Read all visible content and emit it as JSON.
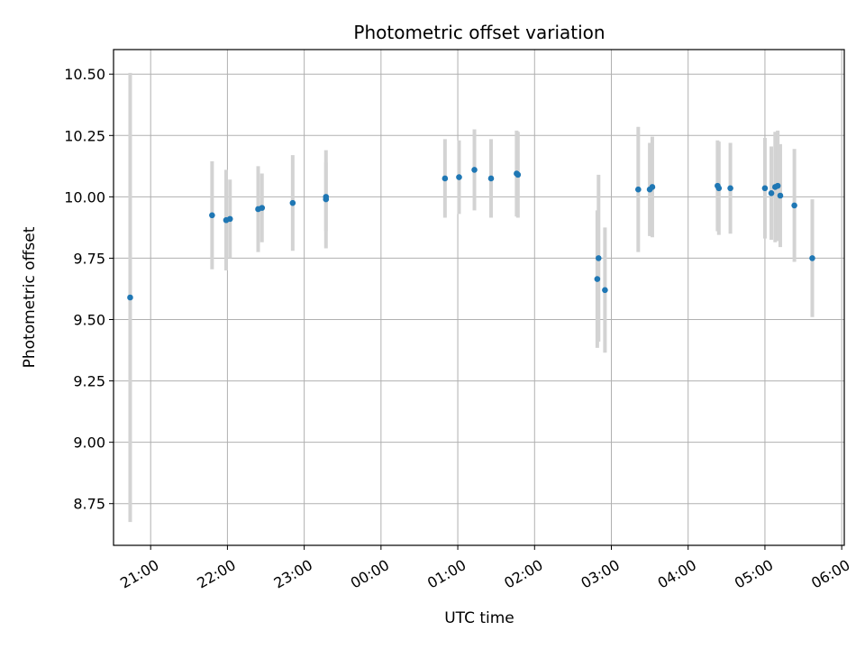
{
  "chart_data": {
    "type": "scatter",
    "title": "Photometric offset variation",
    "xlabel": "UTC time",
    "ylabel": "Photometric offset",
    "grid": true,
    "x_ticks": [
      "21:00",
      "22:00",
      "23:00",
      "00:00",
      "01:00",
      "02:00",
      "03:00",
      "04:00",
      "05:00",
      "06:00"
    ],
    "y_ticks": [
      "8.75",
      "9.00",
      "9.25",
      "9.50",
      "9.75",
      "10.00",
      "10.25",
      "10.50"
    ],
    "xlim": [
      "20:31",
      "06:02"
    ],
    "ylim": [
      8.58,
      10.6
    ],
    "colors": {
      "point": "#1f77b4",
      "errorbar": "#d3d3d3",
      "grid": "#b0b0b0"
    },
    "points": [
      {
        "x": "20:44",
        "y": 9.59,
        "err": 0.915
      },
      {
        "x": "21:48",
        "y": 9.925,
        "err": 0.22
      },
      {
        "x": "21:59",
        "y": 9.905,
        "err": 0.205
      },
      {
        "x": "22:02",
        "y": 9.91,
        "err": 0.16
      },
      {
        "x": "22:24",
        "y": 9.95,
        "err": 0.175
      },
      {
        "x": "22:27",
        "y": 9.955,
        "err": 0.14
      },
      {
        "x": "22:51",
        "y": 9.975,
        "err": 0.195
      },
      {
        "x": "23:17",
        "y": 10.0,
        "err": 0.14
      },
      {
        "x": "23:17",
        "y": 9.99,
        "err": 0.2
      },
      {
        "x": "00:50",
        "y": 10.075,
        "err": 0.16
      },
      {
        "x": "01:01",
        "y": 10.08,
        "err": 0.15
      },
      {
        "x": "01:13",
        "y": 10.11,
        "err": 0.165
      },
      {
        "x": "01:26",
        "y": 10.075,
        "err": 0.16
      },
      {
        "x": "01:46",
        "y": 10.095,
        "err": 0.175
      },
      {
        "x": "01:47",
        "y": 10.09,
        "err": 0.175
      },
      {
        "x": "02:49",
        "y": 9.665,
        "err": 0.28
      },
      {
        "x": "02:50",
        "y": 9.75,
        "err": 0.34
      },
      {
        "x": "02:55",
        "y": 9.62,
        "err": 0.255
      },
      {
        "x": "03:21",
        "y": 10.03,
        "err": 0.255
      },
      {
        "x": "03:30",
        "y": 10.03,
        "err": 0.19
      },
      {
        "x": "03:32",
        "y": 10.04,
        "err": 0.205
      },
      {
        "x": "04:23",
        "y": 10.045,
        "err": 0.185
      },
      {
        "x": "04:24",
        "y": 10.035,
        "err": 0.19
      },
      {
        "x": "04:33",
        "y": 10.035,
        "err": 0.185
      },
      {
        "x": "05:00",
        "y": 10.035,
        "err": 0.205
      },
      {
        "x": "05:05",
        "y": 10.015,
        "err": 0.19
      },
      {
        "x": "05:08",
        "y": 10.04,
        "err": 0.225
      },
      {
        "x": "05:10",
        "y": 10.045,
        "err": 0.225
      },
      {
        "x": "05:12",
        "y": 10.005,
        "err": 0.21
      },
      {
        "x": "05:23",
        "y": 9.965,
        "err": 0.23
      },
      {
        "x": "05:37",
        "y": 9.75,
        "err": 0.24
      }
    ]
  }
}
